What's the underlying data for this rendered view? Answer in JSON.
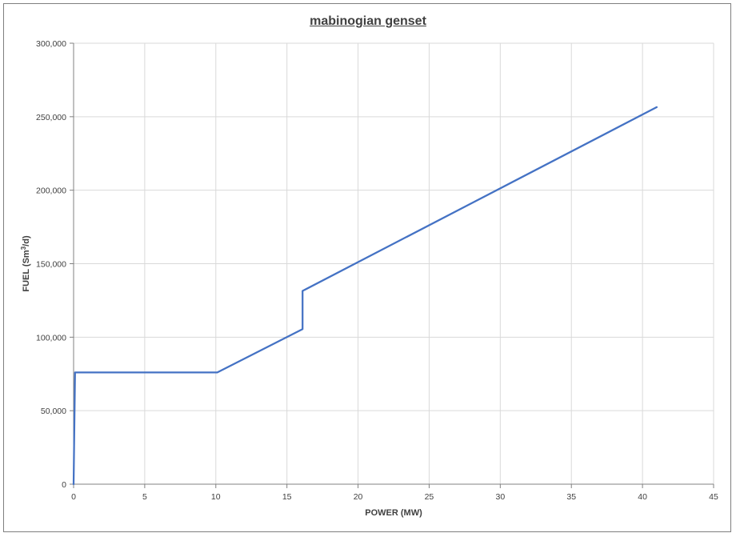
{
  "chart_data": {
    "type": "line",
    "title": "mabinogian genset",
    "xlabel": "POWER (MW)",
    "ylabel_parts": [
      "FUEL (Sm",
      "3",
      "/d)"
    ],
    "xlim": [
      0,
      45
    ],
    "ylim": [
      0,
      300000
    ],
    "x_ticks": [
      0,
      5,
      10,
      15,
      20,
      25,
      30,
      35,
      40,
      45
    ],
    "y_ticks": [
      0,
      50000,
      100000,
      150000,
      200000,
      250000,
      300000
    ],
    "x_tick_labels": [
      "0",
      "5",
      "10",
      "15",
      "20",
      "25",
      "30",
      "35",
      "40",
      "45"
    ],
    "y_tick_labels": [
      "0",
      "50,000",
      "100,000",
      "150,000",
      "200,000",
      "250,000",
      "300,000"
    ],
    "grid": true,
    "legend": "none",
    "series_color": "#4472c4",
    "gridline_color": "#d9d9d9",
    "series": [
      {
        "x": [
          0,
          0.1,
          10.1,
          16.1,
          16.1,
          41
        ],
        "y": [
          0,
          76000,
          76000,
          105500,
          131500,
          256500
        ]
      }
    ]
  }
}
